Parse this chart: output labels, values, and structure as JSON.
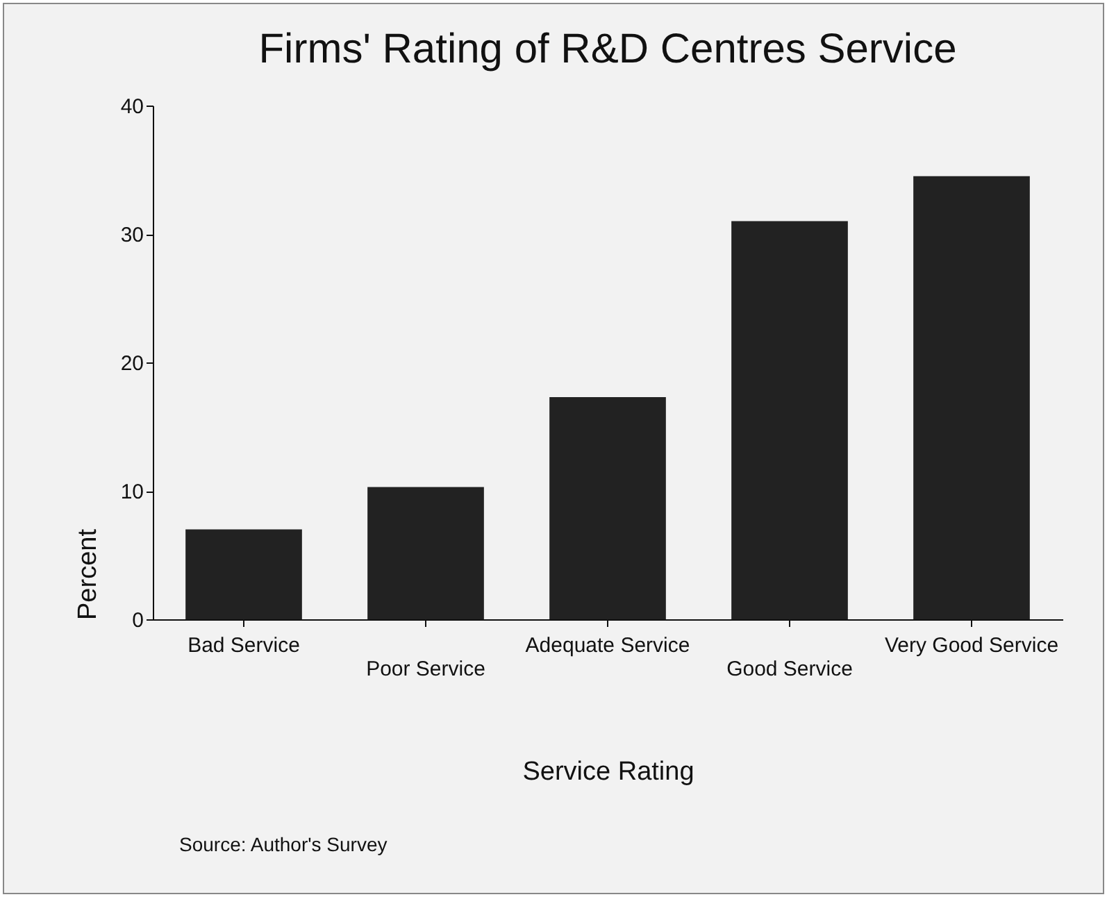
{
  "chart_data": {
    "type": "bar",
    "title": "Firms' Rating of R&D Centres Service",
    "xlabel": "Service Rating",
    "ylabel": "Percent",
    "categories": [
      "Bad Service",
      "Poor Service",
      "Adequate Service",
      "Good Service",
      "Very Good Service"
    ],
    "values": [
      7.0,
      10.3,
      17.3,
      31.0,
      34.5
    ],
    "color": "#222222",
    "ylim": [
      0,
      40
    ],
    "yticks": [
      0,
      10,
      20,
      30,
      40
    ],
    "grid": false,
    "annotations": [
      "Source: Author's Survey"
    ]
  }
}
